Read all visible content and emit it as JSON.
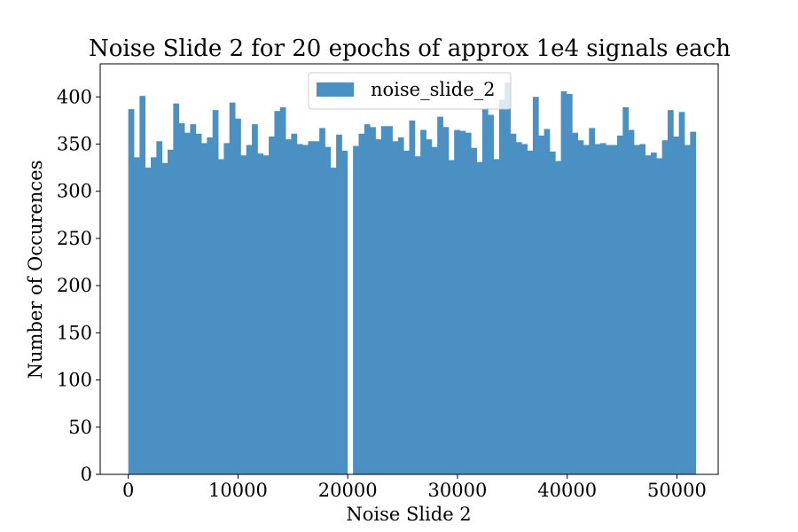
{
  "chart_data": {
    "type": "bar",
    "title": "Noise Slide 2 for 20 epochs of approx 1e4 signals each",
    "xlabel": "Noise Slide 2",
    "ylabel": "Number of Occurences",
    "xlim": [
      -2560,
      53760
    ],
    "ylim": [
      0,
      435
    ],
    "xticks": [
      0,
      10000,
      20000,
      30000,
      40000,
      50000
    ],
    "xtick_labels": [
      "0",
      "10000",
      "20000",
      "30000",
      "40000",
      "50000"
    ],
    "yticks": [
      0,
      50,
      100,
      150,
      200,
      250,
      300,
      350,
      400
    ],
    "ytick_labels": [
      "0",
      "50",
      "100",
      "150",
      "200",
      "250",
      "300",
      "350",
      "400"
    ],
    "grid": false,
    "legend": {
      "placement": "upper-center",
      "entries": [
        "noise_slide_2"
      ]
    },
    "colors": {
      "bar": "#4a90c2",
      "axes": "#000000",
      "background": "#ffffff"
    },
    "series": [
      {
        "name": "noise_slide_2",
        "bin_start": 0,
        "bin_width": 512,
        "values": [
          387,
          336,
          401,
          325,
          336,
          353,
          330,
          344,
          393,
          372,
          362,
          371,
          361,
          351,
          357,
          386,
          334,
          351,
          394,
          377,
          338,
          349,
          371,
          340,
          338,
          358,
          385,
          389,
          355,
          361,
          350,
          349,
          353,
          353,
          367,
          347,
          325,
          360,
          343,
          0,
          348,
          361,
          371,
          368,
          355,
          369,
          369,
          353,
          357,
          343,
          375,
          337,
          365,
          355,
          347,
          379,
          368,
          333,
          365,
          364,
          362,
          346,
          331,
          388,
          381,
          334,
          397,
          415,
          361,
          352,
          350,
          343,
          400,
          359,
          366,
          342,
          332,
          406,
          403,
          362,
          354,
          349,
          367,
          350,
          351,
          349,
          349,
          359,
          389,
          365,
          349,
          350,
          338,
          341,
          335,
          354,
          386,
          358,
          384,
          349,
          363
        ]
      }
    ]
  }
}
